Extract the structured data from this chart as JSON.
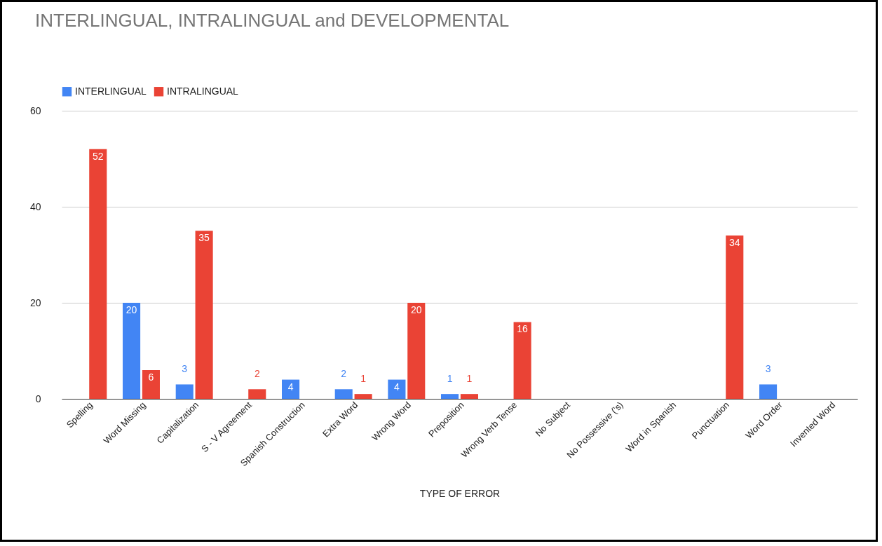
{
  "chart_data": {
    "type": "bar",
    "title": "INTERLINGUAL, INTRALINGUAL and DEVELOPMENTAL",
    "xlabel": "TYPE OF ERROR",
    "categories": [
      "Spelling",
      "Word Missing",
      "Capitalization",
      "S - V Agreement",
      "Spanish Construction",
      "Extra Word",
      "Wrong Word",
      "Preposition",
      "Wrong Verb Tense",
      "No Subject",
      "No Possessive ('s)",
      "Word in Spanish",
      "Punctuation",
      "Word Order",
      "Invented Word"
    ],
    "series": [
      {
        "name": "INTERLINGUAL",
        "color": "#4285f4",
        "values": [
          null,
          20,
          3,
          null,
          4,
          2,
          4,
          1,
          null,
          null,
          null,
          null,
          null,
          3,
          null
        ]
      },
      {
        "name": "INTRALINGUAL",
        "color": "#ea4335",
        "values": [
          52,
          6,
          35,
          2,
          null,
          1,
          20,
          1,
          16,
          null,
          null,
          null,
          34,
          null,
          null
        ]
      }
    ],
    "ylim": [
      0,
      60
    ],
    "yticks": [
      0,
      20,
      40,
      60
    ],
    "grid": "y",
    "legend": "top",
    "data_labels": true
  }
}
